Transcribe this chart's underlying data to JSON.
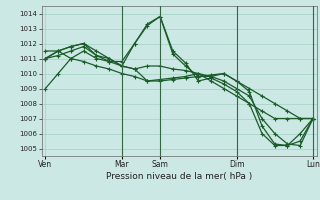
{
  "xlabel": "Pression niveau de la mer( hPa )",
  "bg_color": "#cce8e4",
  "grid_color": "#99ccbb",
  "line_color": "#1a5c2a",
  "vline_color": "#336644",
  "ylim": [
    1004.5,
    1014.5
  ],
  "yticks": [
    1005,
    1006,
    1007,
    1008,
    1009,
    1010,
    1011,
    1012,
    1013,
    1014
  ],
  "xtick_labels": [
    "Ven",
    "Mar",
    "Sam",
    "Dim",
    "Lun"
  ],
  "xtick_pos": [
    0,
    6,
    9,
    15,
    21
  ],
  "vlines_x": [
    6,
    9,
    15,
    21
  ],
  "xlim": [
    -0.3,
    21.3
  ],
  "series": [
    [
      1009.0,
      1010.0,
      1011.0,
      1011.5,
      1011.0,
      1010.8,
      1010.5,
      1010.3,
      1009.5,
      1009.5,
      1009.6,
      1009.7,
      1009.8,
      1009.9,
      1010.0,
      1009.5,
      1009.0,
      1008.5,
      1008.0,
      1007.5,
      1007.0,
      1007.0
    ],
    [
      1011.0,
      1011.5,
      1011.8,
      1012.0,
      1011.5,
      1011.0,
      1010.5,
      1012.0,
      1013.3,
      1013.8,
      1011.5,
      1010.7,
      1009.5,
      1009.7,
      1009.3,
      1008.8,
      1008.0,
      1006.0,
      1005.2,
      1005.2,
      1006.0,
      1007.0
    ],
    [
      1011.0,
      1011.5,
      1011.8,
      1012.0,
      1011.2,
      1010.8,
      1010.8,
      1012.0,
      1013.2,
      1013.8,
      1011.3,
      1010.5,
      1009.8,
      1009.8,
      1010.0,
      1009.5,
      1008.8,
      1006.5,
      1005.3,
      1005.2,
      1005.5,
      1007.0
    ],
    [
      1011.0,
      1011.2,
      1011.5,
      1011.8,
      1011.2,
      1011.0,
      1010.5,
      1010.3,
      1010.5,
      1010.5,
      1010.3,
      1010.2,
      1010.0,
      1009.8,
      1009.5,
      1009.0,
      1008.5,
      1007.0,
      1006.0,
      1005.3,
      1005.2,
      1007.0
    ],
    [
      1011.5,
      1011.5,
      1011.0,
      1010.8,
      1010.5,
      1010.3,
      1010.0,
      1009.8,
      1009.5,
      1009.6,
      1009.7,
      1009.8,
      1010.0,
      1009.5,
      1009.0,
      1008.5,
      1008.0,
      1007.5,
      1007.0,
      1007.0,
      1007.0,
      1007.0
    ]
  ]
}
